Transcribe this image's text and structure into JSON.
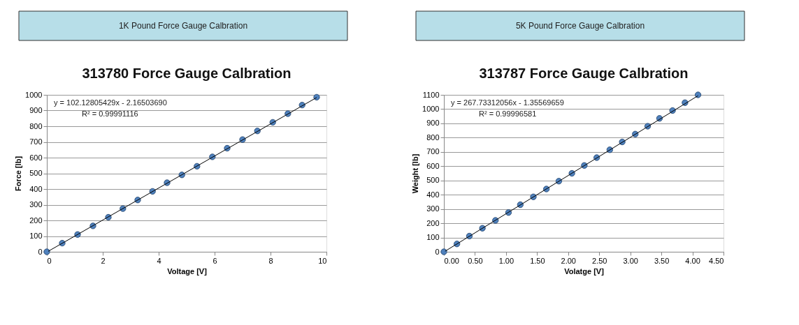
{
  "chart_data": [
    {
      "type": "scatter",
      "title": "313780 Force Gauge Calbration",
      "xlabel": "Voltage [V]",
      "ylabel": "Force [lb]",
      "annotations": [
        "1K  Pound Force Gauge Calbration",
        "y = 102.12805429x - 2.16503690",
        "R² = 0.99991116"
      ],
      "xlim": [
        0,
        10
      ],
      "xticks": [
        0,
        2,
        4,
        6,
        8,
        10
      ],
      "ylim": [
        0,
        1000
      ],
      "yticks": [
        0,
        100,
        200,
        300,
        400,
        500,
        600,
        700,
        800,
        900,
        1000
      ],
      "grid": "y",
      "series": [
        {
          "marker": "circle",
          "color": "#4f81bd",
          "x": [
            0,
            0.55,
            1.1,
            1.65,
            2.2,
            2.72,
            3.25,
            3.78,
            4.3,
            4.83,
            5.37,
            5.92,
            6.45,
            7.0,
            7.53,
            8.08,
            8.62,
            9.13,
            9.65
          ],
          "values": [
            0,
            55,
            110,
            165,
            220,
            275,
            330,
            385,
            440,
            490,
            545,
            605,
            660,
            715,
            770,
            825,
            880,
            935,
            985
          ]
        },
        {
          "type": "line",
          "color": "#000000",
          "x": [
            0.05,
            9.65
          ],
          "values": [
            3,
            983
          ]
        }
      ]
    },
    {
      "type": "scatter",
      "title": "313787 Force Gauge Calbration",
      "xlabel": "Volatge [V]",
      "ylabel": "Weight [lb]",
      "annotations": [
        "5K  Pound Force Gauge Calbration",
        "y = 267.73312056x - 1.35569659",
        "R² = 0.99996581"
      ],
      "xlim": [
        0,
        4.5
      ],
      "xticks": [
        {
          "value": 0,
          "label": "0.00"
        },
        {
          "value": 0.5,
          "label": "0.50"
        },
        {
          "value": 1,
          "label": "1.00"
        },
        {
          "value": 1.5,
          "label": "1.50"
        },
        {
          "value": 2,
          "label": "2.00"
        },
        {
          "value": 2.5,
          "label": "2.50"
        },
        {
          "value": 3,
          "label": "3.00"
        },
        {
          "value": 3.5,
          "label": "3.50"
        },
        {
          "value": 4,
          "label": "4.00"
        },
        {
          "value": 4.5,
          "label": "4.50"
        }
      ],
      "ylim": [
        0,
        1100
      ],
      "yticks": [
        0,
        100,
        200,
        300,
        400,
        500,
        600,
        700,
        800,
        900,
        1000,
        1100
      ],
      "grid": "y",
      "series": [
        {
          "marker": "circle",
          "color": "#4f81bd",
          "x": [
            0,
            0.21,
            0.41,
            0.62,
            0.83,
            1.04,
            1.23,
            1.44,
            1.65,
            1.85,
            2.06,
            2.26,
            2.46,
            2.67,
            2.87,
            3.08,
            3.28,
            3.47,
            3.68,
            3.88,
            4.09
          ],
          "values": [
            0,
            55,
            110,
            165,
            220,
            275,
            330,
            385,
            440,
            495,
            550,
            605,
            660,
            715,
            770,
            825,
            880,
            935,
            990,
            1045,
            1100
          ]
        },
        {
          "type": "line",
          "color": "#000000",
          "x": [
            0.02,
            4.09
          ],
          "values": [
            4,
            1094
          ]
        }
      ]
    }
  ]
}
